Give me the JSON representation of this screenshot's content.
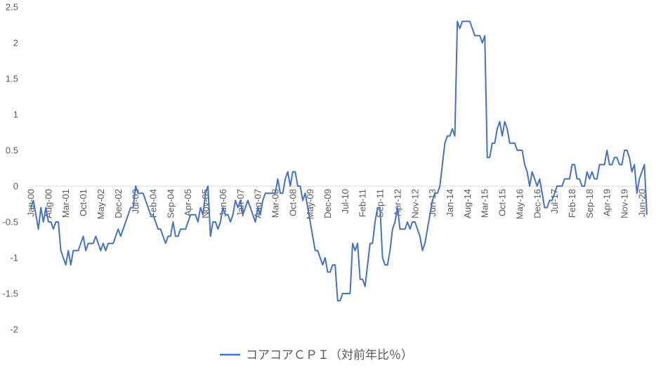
{
  "chart_data": {
    "type": "line",
    "title": "",
    "xlabel": "",
    "ylabel": "",
    "ylim": [
      -2,
      2.5
    ],
    "yticks": [
      2.5,
      2,
      1.5,
      1,
      0.5,
      0,
      -0.5,
      -1,
      -1.5,
      -2
    ],
    "x_tick_labels": [
      "Jan-00",
      "Aug-00",
      "Mar-01",
      "Oct-01",
      "May-02",
      "Dec-02",
      "Jul-03",
      "Feb-04",
      "Sep-04",
      "Apr-05",
      "Nov-05",
      "Jun-06",
      "Jan-07",
      "Aug-07",
      "Mar-08",
      "Oct-08",
      "May-09",
      "Dec-09",
      "Jul-10",
      "Feb-11",
      "Sep-11",
      "Apr-12",
      "Nov-12",
      "Jun-13",
      "Jan-14",
      "Aug-14",
      "Mar-15",
      "Oct-15",
      "May-16",
      "Dec-16",
      "Jul-17",
      "Feb-18",
      "Sep-18",
      "Apr-19",
      "Nov-19",
      "Jun-20"
    ],
    "grid": false,
    "legend": "bottom",
    "series": [
      {
        "name": "コアコアＣＰＩ（対前年比％）",
        "color": "#4472c4",
        "start": "Jan-00",
        "frequency": "monthly",
        "values": [
          -0.3,
          -0.2,
          -0.4,
          -0.6,
          -0.3,
          -0.5,
          -0.3,
          -0.5,
          -0.5,
          -0.6,
          -0.5,
          -0.5,
          -0.9,
          -1.0,
          -1.1,
          -0.9,
          -1.1,
          -0.9,
          -0.9,
          -0.9,
          -0.8,
          -0.7,
          -0.9,
          -0.8,
          -0.8,
          -0.8,
          -0.7,
          -0.8,
          -0.9,
          -0.8,
          -0.9,
          -0.8,
          -0.8,
          -0.8,
          -0.7,
          -0.6,
          -0.7,
          -0.6,
          -0.5,
          -0.4,
          -0.3,
          -0.3,
          0.0,
          -0.1,
          -0.1,
          -0.1,
          -0.2,
          -0.3,
          -0.4,
          -0.4,
          -0.5,
          -0.6,
          -0.6,
          -0.7,
          -0.8,
          -0.7,
          -0.7,
          -0.5,
          -0.7,
          -0.7,
          -0.6,
          -0.6,
          -0.6,
          -0.5,
          -0.4,
          -0.4,
          -0.4,
          -0.5,
          -0.3,
          -0.4,
          -0.1,
          0.0,
          -0.7,
          -0.5,
          -0.5,
          -0.6,
          -0.5,
          -0.3,
          -0.4,
          -0.4,
          -0.5,
          -0.4,
          -0.2,
          -0.3,
          -0.2,
          -0.4,
          -0.3,
          -0.2,
          -0.3,
          -0.4,
          -0.5,
          -0.3,
          -0.4,
          -0.2,
          -0.1,
          -0.1,
          -0.1,
          -0.1,
          -0.1,
          0.1,
          -0.1,
          -0.1,
          0.1,
          0.2,
          0.0,
          0.2,
          0.2,
          0.0,
          0.0,
          -0.2,
          -0.1,
          -0.3,
          -0.5,
          -0.7,
          -0.9,
          -0.9,
          -1.0,
          -1.1,
          -1.0,
          -1.2,
          -1.2,
          -1.1,
          -1.1,
          -1.6,
          -1.6,
          -1.5,
          -1.5,
          -1.5,
          -1.5,
          -0.8,
          -0.9,
          -0.8,
          -1.3,
          -1.3,
          -1.4,
          -1.1,
          -0.8,
          -0.8,
          -0.5,
          -0.3,
          -0.3,
          -1.0,
          -1.1,
          -1.1,
          -0.9,
          -0.6,
          -0.5,
          -0.3,
          -0.6,
          -0.6,
          -0.6,
          -0.5,
          -0.6,
          -0.5,
          -0.5,
          -0.6,
          -0.7,
          -0.9,
          -0.8,
          -0.6,
          -0.4,
          -0.2,
          -0.1,
          -0.1,
          0.0,
          0.3,
          0.6,
          0.7,
          0.7,
          0.8,
          0.7,
          2.3,
          2.2,
          2.3,
          2.3,
          2.3,
          2.3,
          2.2,
          2.1,
          2.1,
          2.1,
          2.0,
          2.1,
          0.4,
          0.4,
          0.6,
          0.6,
          0.8,
          0.9,
          0.7,
          0.9,
          0.8,
          0.6,
          0.6,
          0.6,
          0.5,
          0.5,
          0.5,
          0.3,
          0.2,
          0.0,
          0.2,
          0.1,
          0.0,
          0.1,
          -0.1,
          -0.3,
          -0.3,
          -0.2,
          -0.2,
          -0.1,
          0.0,
          0.0,
          0.0,
          0.1,
          0.1,
          0.1,
          0.3,
          0.3,
          0.1,
          0.1,
          0.0,
          0.0,
          0.2,
          0.1,
          0.2,
          0.1,
          0.1,
          0.3,
          0.3,
          0.3,
          0.5,
          0.3,
          0.3,
          0.4,
          0.4,
          0.3,
          0.3,
          0.5,
          0.5,
          0.4,
          0.2,
          0.3,
          -0.1,
          0.1,
          0.2,
          0.3,
          -0.4
        ]
      }
    ]
  }
}
